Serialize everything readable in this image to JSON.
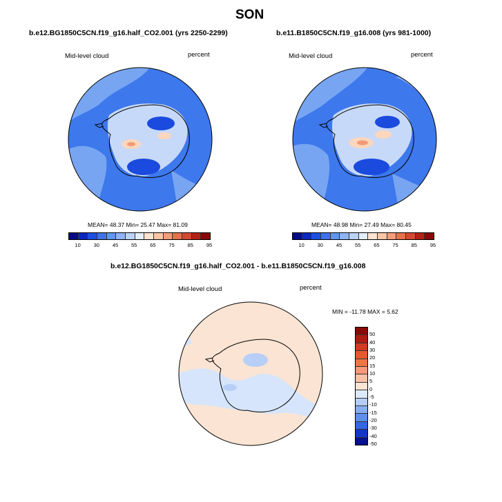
{
  "title": "SON",
  "panels": {
    "left": {
      "title": "b.e12.BG1850C5CN.f19_g16.half_CO2.001 (yrs 2250-2299)",
      "variable": "Mid-level cloud",
      "units": "percent",
      "stats": "MEAN=  48.37  Min=  25.47  Max=  81.09"
    },
    "right": {
      "title": "b.e11.B1850C5CN.f19_g16.008 (yrs 981-1000)",
      "variable": "Mid-level cloud",
      "units": "percent",
      "stats": "MEAN=  48.98  Min=  27.49  Max=  80.45"
    },
    "diff": {
      "title": "b.e12.BG1850C5CN.f19_g16.half_CO2.001 - b.e11.B1850C5CN.f19_g16.008",
      "variable": "Mid-level cloud",
      "units": "percent",
      "stats": "MIN = -11.78 MAX =   5.62"
    }
  },
  "colorbar_main": {
    "labels": [
      "10",
      "30",
      "45",
      "55",
      "65",
      "75",
      "85",
      "95"
    ],
    "colors": [
      "#050a8a",
      "#0c26c4",
      "#1f4fe0",
      "#3c73ea",
      "#6295ef",
      "#8fb4f3",
      "#bcd2f7",
      "#e5eefb",
      "#fde3d0",
      "#fbc6a6",
      "#f49e78",
      "#e8704e",
      "#d6482f",
      "#b52215",
      "#8a0808"
    ]
  },
  "colorbar_diff": {
    "labels": [
      "50",
      "40",
      "30",
      "20",
      "15",
      "10",
      "5",
      "0",
      "-5",
      "-10",
      "-15",
      "-20",
      "-30",
      "-40",
      "-50"
    ],
    "colors": [
      "#8a0808",
      "#b01a10",
      "#d23a22",
      "#e8582f",
      "#f27346",
      "#f7987a",
      "#fbc1a6",
      "#fde4d2",
      "#dce9fb",
      "#b5cdf6",
      "#88aef1",
      "#5e8eee",
      "#3466e6",
      "#1236c8",
      "#05108e"
    ]
  },
  "map_colors": {
    "ocean_main": "#3d78ec",
    "ocean_light": "#78a5f2",
    "ocean_deep": "#1a4ade",
    "ice_pale": "#c7d9f8",
    "warm_light": "#fcd6bd",
    "warm_mid": "#f19a75",
    "diff_bg": "#fbe4d3",
    "diff_blue": "#d6e5fb",
    "diff_blue2": "#b7cff6",
    "land_outline": "#000000"
  }
}
